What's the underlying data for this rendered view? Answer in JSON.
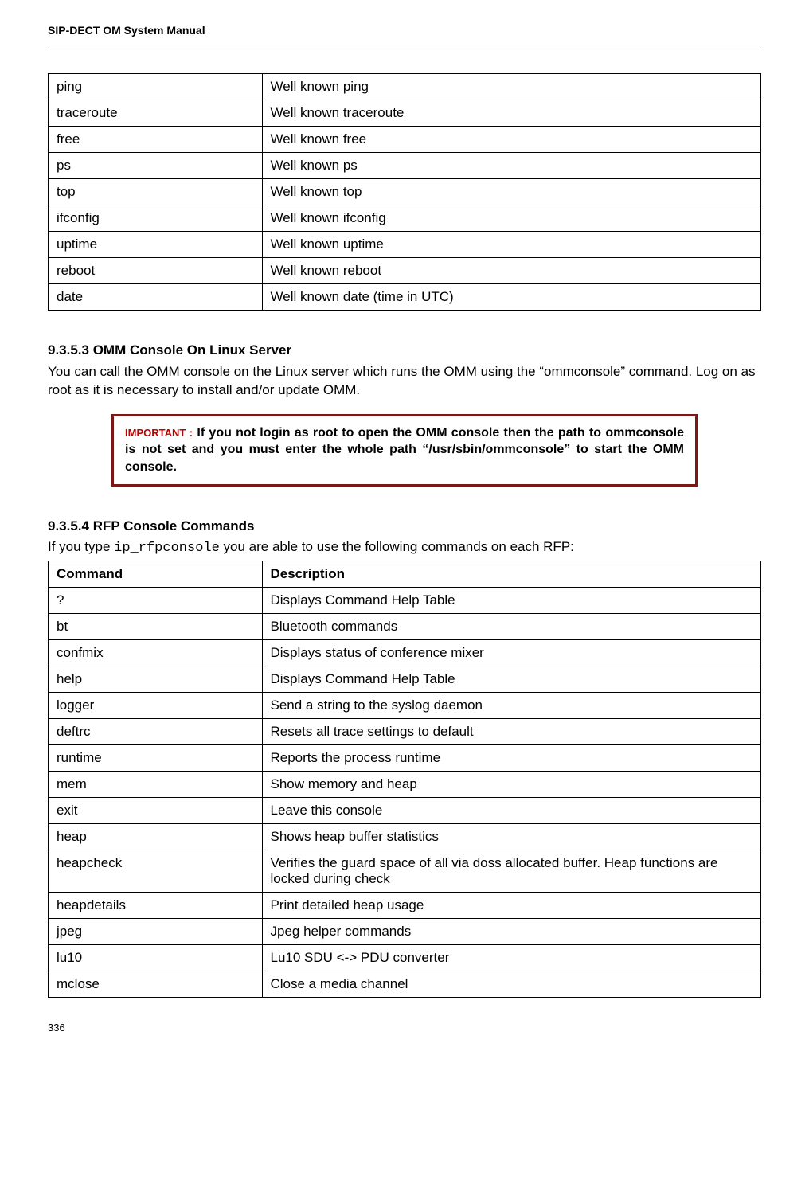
{
  "header": {
    "title": "SIP-DECT OM System Manual"
  },
  "table1": {
    "rows": [
      {
        "cmd": "ping",
        "desc": "Well known ping"
      },
      {
        "cmd": "traceroute",
        "desc": "Well known traceroute"
      },
      {
        "cmd": "free",
        "desc": "Well known free"
      },
      {
        "cmd": "ps",
        "desc": "Well known ps"
      },
      {
        "cmd": "top",
        "desc": "Well known top"
      },
      {
        "cmd": "ifconfig",
        "desc": "Well known ifconfig"
      },
      {
        "cmd": "uptime",
        "desc": "Well known uptime"
      },
      {
        "cmd": "reboot",
        "desc": "Well known reboot"
      },
      {
        "cmd": "date",
        "desc": "Well known date (time in UTC)"
      }
    ]
  },
  "section1": {
    "heading": "9.3.5.3 OMM Console On Linux Server",
    "para": "You can call the OMM console on the Linux server which runs the OMM using the “ommconsole” command. Log on as root as it is necessary to install and/or update OMM."
  },
  "important": {
    "label": "IMPORTANT :",
    "text": " If you not login as root to open the OMM console then the path to ommconsole is not set and you must enter the whole path “/usr/sbin/ommconsole” to start the OMM console."
  },
  "section2": {
    "heading": "9.3.5.4 RFP Console Commands",
    "intro_prefix": "If you type ",
    "intro_mono": "ip_rfpconsole",
    "intro_suffix": " you are able to use the following commands on each RFP:"
  },
  "table2": {
    "head": {
      "col1": "Command",
      "col2": "Description"
    },
    "rows": [
      {
        "cmd": "?",
        "desc": "Displays Command Help Table"
      },
      {
        "cmd": "bt",
        "desc": "Bluetooth commands"
      },
      {
        "cmd": "confmix",
        "desc": "Displays status of conference mixer"
      },
      {
        "cmd": "help",
        "desc": "Displays Command Help Table"
      },
      {
        "cmd": "logger",
        "desc": "Send a string to the syslog daemon"
      },
      {
        "cmd": "deftrc",
        "desc": "Resets all trace settings to default"
      },
      {
        "cmd": "runtime",
        "desc": "Reports the process runtime"
      },
      {
        "cmd": "mem",
        "desc": "Show memory and heap"
      },
      {
        "cmd": "exit",
        "desc": "Leave this console"
      },
      {
        "cmd": "heap",
        "desc": "Shows heap buffer statistics"
      },
      {
        "cmd": "heapcheck",
        "desc": "Verifies the guard space of all via doss allocated buffer. Heap functions are locked during check"
      },
      {
        "cmd": "heapdetails",
        "desc": "Print detailed heap usage"
      },
      {
        "cmd": "jpeg",
        "desc": "Jpeg helper commands"
      },
      {
        "cmd": "lu10",
        "desc": "Lu10 SDU <-> PDU converter"
      },
      {
        "cmd": "mclose",
        "desc": "Close a media channel"
      }
    ]
  },
  "footer": {
    "page": "336"
  }
}
